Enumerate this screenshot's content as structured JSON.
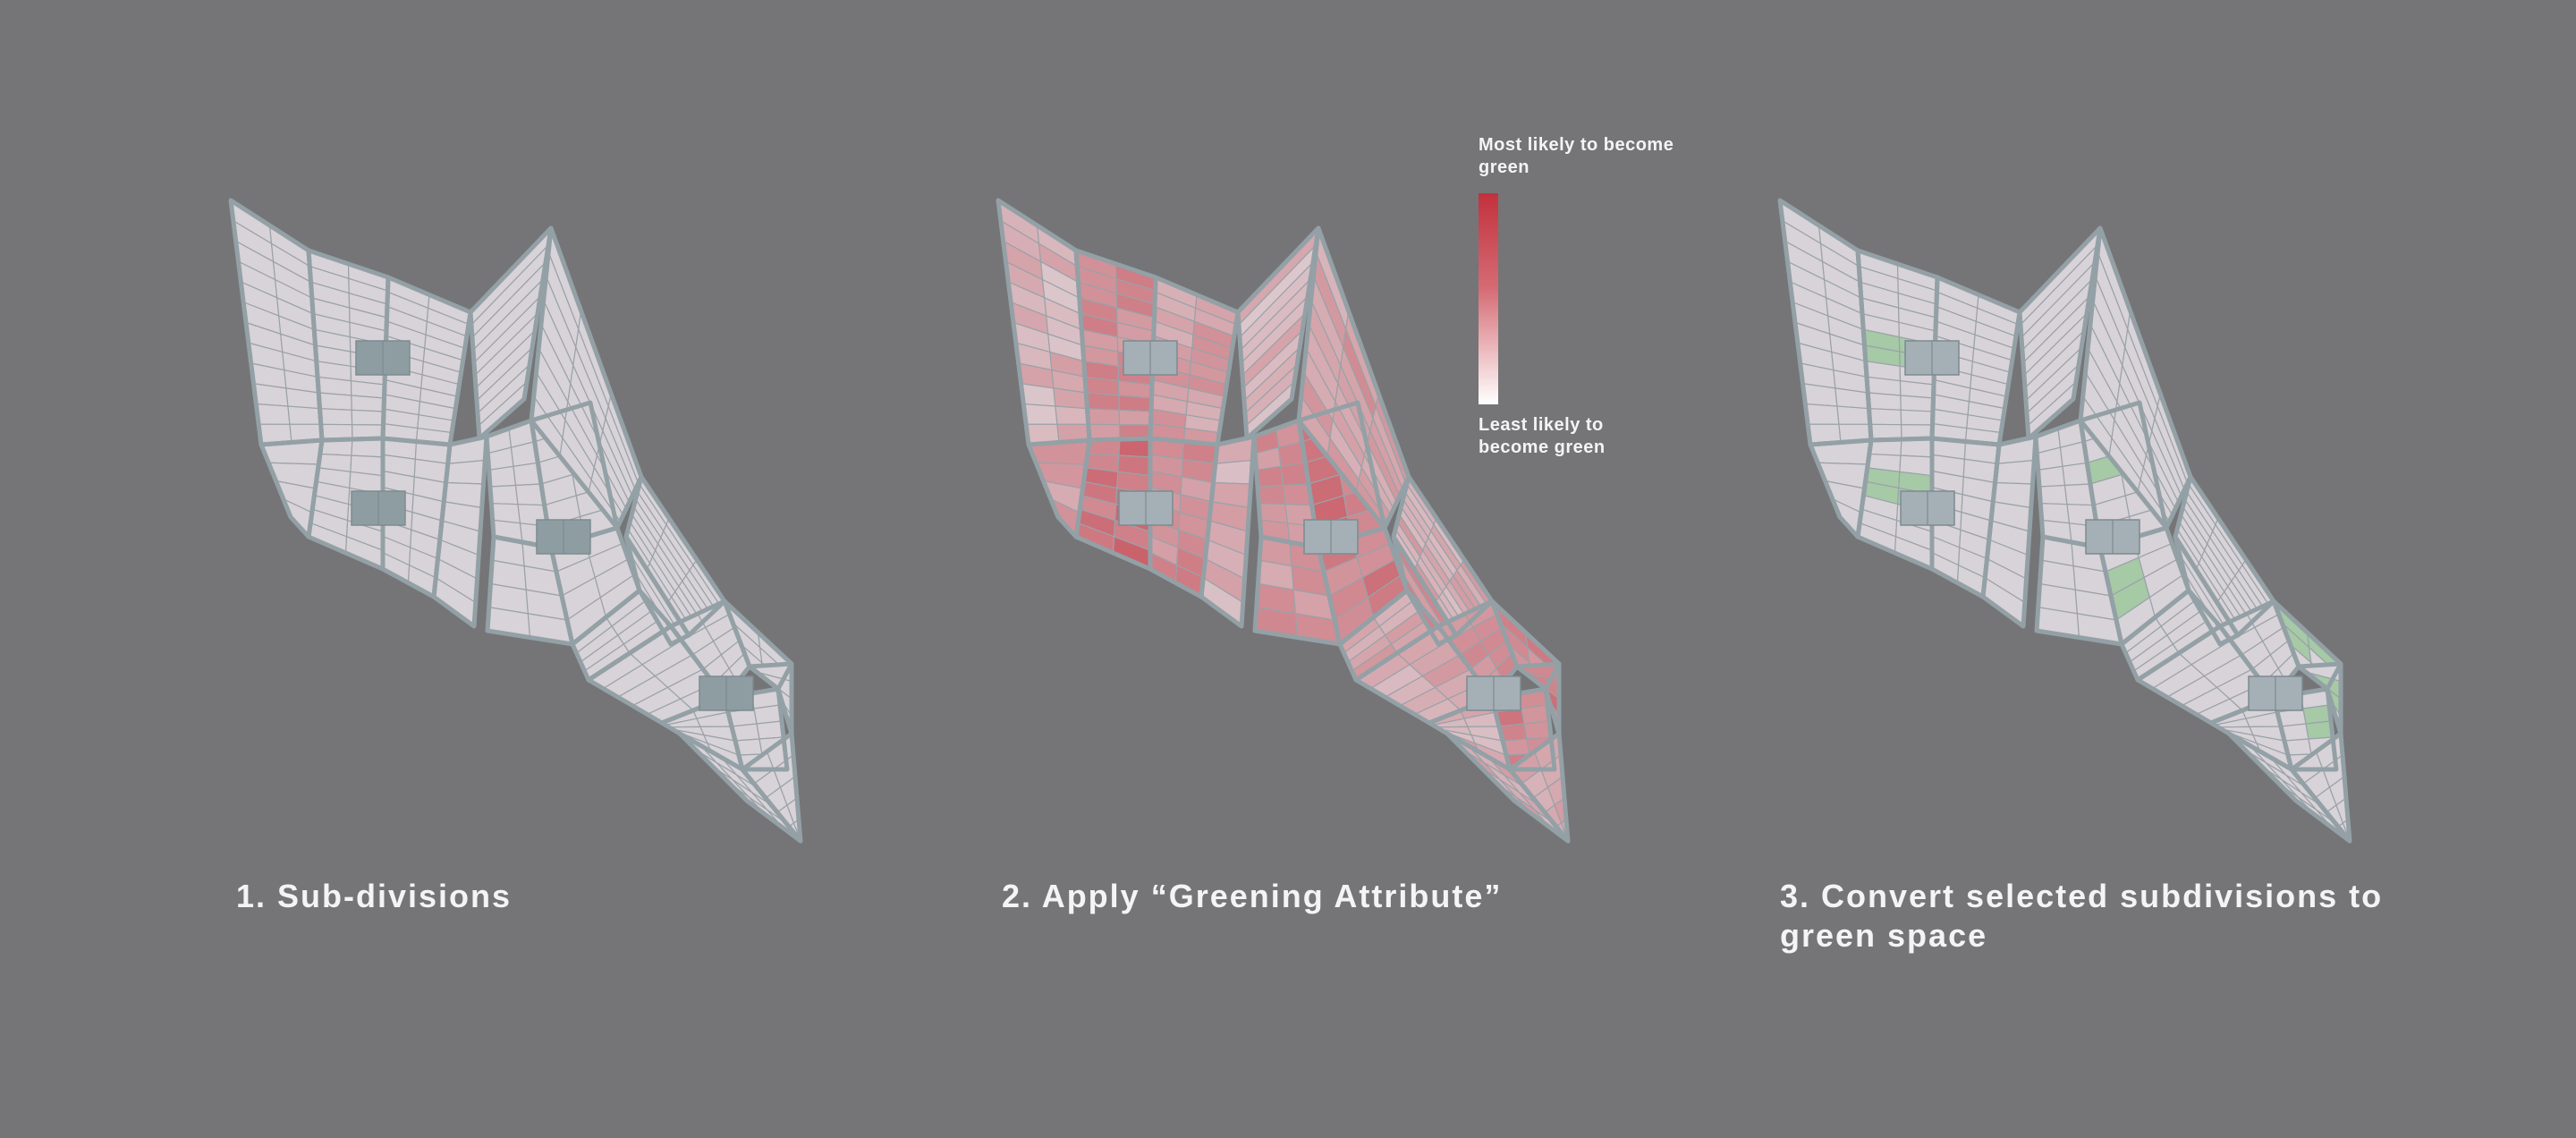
{
  "steps": [
    {
      "id": "subdivisions",
      "label": "1. Sub-divisions",
      "mode": "plain"
    },
    {
      "id": "greening",
      "label": "2. Apply “Greening Attribute”",
      "mode": "heat"
    },
    {
      "id": "convert",
      "label": "3. Convert selected subdivisions to green space",
      "mode": "green"
    }
  ],
  "legend": {
    "top_label": "Most likely to become green",
    "bottom_label": "Least likely to become green"
  },
  "colors": {
    "background": "#757577",
    "parcel": "#d8d3d8",
    "road": "#93a1a6",
    "building": "#8e9da2",
    "heat_high": "#c2313d",
    "heat_low": "#ffffff",
    "green": "#a6c9a6"
  }
}
